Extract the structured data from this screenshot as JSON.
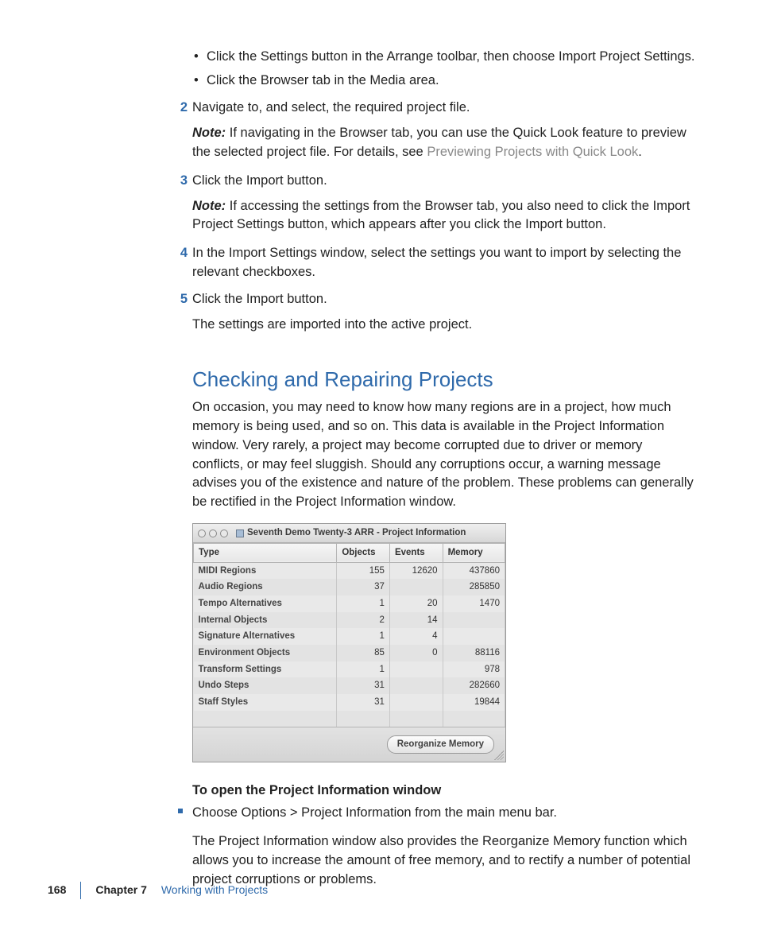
{
  "colors": {
    "accent": "#2f6aab",
    "link_muted": "#888888",
    "text": "#222222"
  },
  "intro_bullets": [
    "Click the Settings button in the Arrange toolbar, then choose Import Project Settings.",
    "Click the Browser tab in the Media area."
  ],
  "steps": {
    "s2": {
      "num": "2",
      "text": "Navigate to, and select, the required project file."
    },
    "s2_note_label": "Note:",
    "s2_note_pre": "If navigating in the Browser tab, you can use the Quick Look feature to preview the selected project file. For details, see ",
    "s2_note_link": "Previewing Projects with Quick Look",
    "s2_note_post": ".",
    "s3": {
      "num": "3",
      "text": "Click the Import button."
    },
    "s3_note_label": "Note:",
    "s3_note": "If accessing the settings from the Browser tab, you also need to click the Import Project Settings button, which appears after you click the Import button.",
    "s4": {
      "num": "4",
      "text": "In the Import Settings window, select the settings you want to import by selecting the relevant checkboxes."
    },
    "s5": {
      "num": "5",
      "text": "Click the Import button."
    },
    "after": "The settings are imported into the active project."
  },
  "section_heading": "Checking and Repairing Projects",
  "section_body": "On occasion, you may need to know how many regions are in a project, how much memory is being used, and so on. This data is available in the Project Information window. Very rarely, a project may become corrupted due to driver or memory conflicts, or may feel sluggish. Should any corruptions occur, a warning message advises you of the existence and nature of the problem. These problems can generally be rectified in the Project Information window.",
  "window": {
    "title": "Seventh Demo Twenty-3 ARR - Project Information",
    "columns": [
      "Type",
      "Objects",
      "Events",
      "Memory"
    ],
    "col_widths_pct": [
      46,
      17,
      17,
      20
    ],
    "rows": [
      [
        "MIDI Regions",
        "155",
        "12620",
        "437860"
      ],
      [
        "Audio Regions",
        "37",
        "",
        "285850"
      ],
      [
        "Tempo Alternatives",
        "1",
        "20",
        "1470"
      ],
      [
        "Internal Objects",
        "2",
        "14",
        ""
      ],
      [
        "Signature Alternatives",
        "1",
        "4",
        ""
      ],
      [
        "Environment Objects",
        "85",
        "0",
        "88116"
      ],
      [
        "Transform Settings",
        "1",
        "",
        "978"
      ],
      [
        "Undo Steps",
        "31",
        "",
        "282660"
      ],
      [
        "Staff Styles",
        "31",
        "",
        "19844"
      ]
    ],
    "button": "Reorganize Memory"
  },
  "open_heading": "To open the Project Information window",
  "open_step": "Choose Options > Project Information from the main menu bar.",
  "reorg_para": "The Project Information window also provides the Reorganize Memory function which allows you to increase the amount of free memory, and to rectify a number of potential project corruptions or problems.",
  "footer": {
    "page": "168",
    "chapter": "Chapter 7",
    "title": "Working with Projects"
  }
}
